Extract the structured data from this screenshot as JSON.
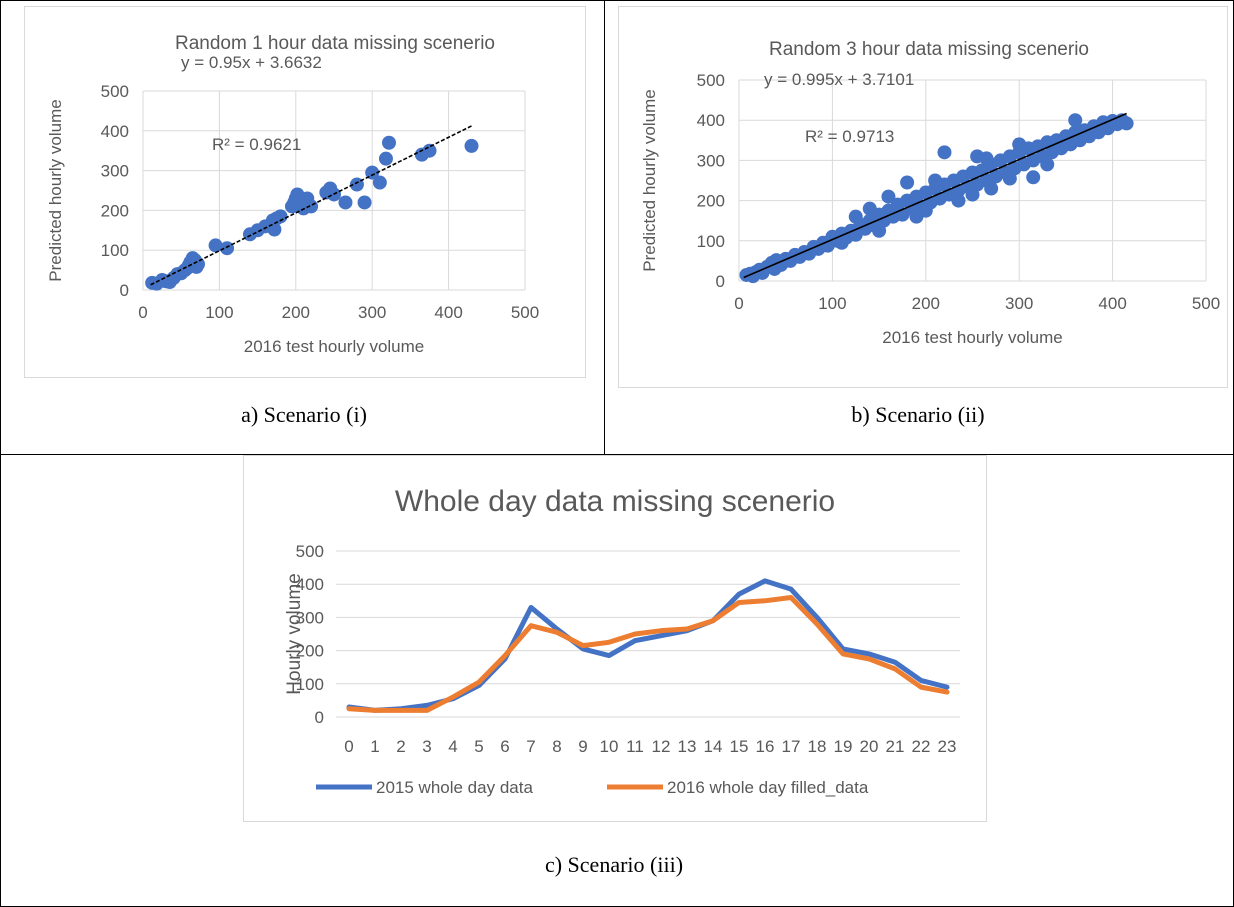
{
  "captions": {
    "a": "a)   Scenario (i)",
    "b": "b)   Scenario (ii)",
    "c": "c)   Scenario (iii)"
  },
  "colors": {
    "blue": "#4472C4",
    "orange": "#ED7D31",
    "grid": "#d9d9d9",
    "text": "#595959"
  },
  "chart_data": [
    {
      "id": "a",
      "type": "scatter",
      "title": "Random 1 hour data missing scenerio",
      "xlabel": "2016 test hourly volume",
      "ylabel": "Predicted hourly volume",
      "xlim": [
        0,
        500
      ],
      "ylim": [
        0,
        500
      ],
      "xticks": [
        "0",
        "100",
        "200",
        "300",
        "400",
        "500"
      ],
      "yticks": [
        "0",
        "100",
        "200",
        "300",
        "400",
        "500"
      ],
      "grid": true,
      "trendline": {
        "slope": 0.95,
        "intercept": 3.6632,
        "x_range": [
          10,
          430
        ]
      },
      "equation": "y = 0.95x + 3.6632",
      "r2": "R² = 0.9621",
      "points": [
        [
          12,
          18
        ],
        [
          18,
          16
        ],
        [
          25,
          25
        ],
        [
          30,
          22
        ],
        [
          35,
          20
        ],
        [
          40,
          30
        ],
        [
          45,
          40
        ],
        [
          50,
          42
        ],
        [
          55,
          50
        ],
        [
          58,
          55
        ],
        [
          60,
          62
        ],
        [
          62,
          70
        ],
        [
          65,
          80
        ],
        [
          68,
          75
        ],
        [
          70,
          58
        ],
        [
          72,
          65
        ],
        [
          95,
          112
        ],
        [
          110,
          105
        ],
        [
          140,
          140
        ],
        [
          150,
          150
        ],
        [
          160,
          160
        ],
        [
          170,
          175
        ],
        [
          172,
          152
        ],
        [
          175,
          180
        ],
        [
          180,
          185
        ],
        [
          195,
          210
        ],
        [
          198,
          220
        ],
        [
          200,
          230
        ],
        [
          202,
          240
        ],
        [
          205,
          225
        ],
        [
          208,
          215
        ],
        [
          210,
          205
        ],
        [
          215,
          230
        ],
        [
          220,
          210
        ],
        [
          240,
          245
        ],
        [
          245,
          255
        ],
        [
          250,
          240
        ],
        [
          265,
          220
        ],
        [
          280,
          265
        ],
        [
          290,
          220
        ],
        [
          300,
          295
        ],
        [
          310,
          270
        ],
        [
          318,
          330
        ],
        [
          322,
          370
        ],
        [
          365,
          340
        ],
        [
          375,
          350
        ],
        [
          430,
          362
        ]
      ]
    },
    {
      "id": "b",
      "type": "scatter",
      "title": "Random 3 hour data missing scenerio",
      "xlabel": "2016 test hourly volume",
      "ylabel": "Predicted hourly volume",
      "xlim": [
        0,
        500
      ],
      "ylim": [
        0,
        500
      ],
      "xticks": [
        "0",
        "100",
        "200",
        "300",
        "400",
        "500"
      ],
      "yticks": [
        "0",
        "100",
        "200",
        "300",
        "400",
        "500"
      ],
      "grid": true,
      "trendline": {
        "slope": 0.995,
        "intercept": 3.7101,
        "x_range": [
          5,
          415
        ]
      },
      "equation": "y = 0.995x + 3.7101",
      "r2": "R² = 0.9713",
      "points": [
        [
          8,
          15
        ],
        [
          12,
          18
        ],
        [
          15,
          12
        ],
        [
          18,
          22
        ],
        [
          22,
          28
        ],
        [
          25,
          20
        ],
        [
          30,
          35
        ],
        [
          35,
          45
        ],
        [
          38,
          30
        ],
        [
          40,
          52
        ],
        [
          45,
          40
        ],
        [
          50,
          55
        ],
        [
          55,
          50
        ],
        [
          60,
          65
        ],
        [
          65,
          60
        ],
        [
          70,
          72
        ],
        [
          75,
          68
        ],
        [
          80,
          85
        ],
        [
          85,
          80
        ],
        [
          90,
          95
        ],
        [
          95,
          88
        ],
        [
          100,
          110
        ],
        [
          105,
          100
        ],
        [
          110,
          118
        ],
        [
          115,
          108
        ],
        [
          120,
          125
        ],
        [
          125,
          115
        ],
        [
          130,
          140
        ],
        [
          135,
          130
        ],
        [
          140,
          150
        ],
        [
          145,
          138
        ],
        [
          150,
          165
        ],
        [
          155,
          150
        ],
        [
          160,
          175
        ],
        [
          165,
          160
        ],
        [
          170,
          190
        ],
        [
          175,
          165
        ],
        [
          180,
          200
        ],
        [
          185,
          180
        ],
        [
          190,
          210
        ],
        [
          195,
          185
        ],
        [
          200,
          220
        ],
        [
          205,
          195
        ],
        [
          210,
          230
        ],
        [
          215,
          205
        ],
        [
          220,
          240
        ],
        [
          225,
          215
        ],
        [
          230,
          250
        ],
        [
          235,
          225
        ],
        [
          240,
          260
        ],
        [
          245,
          235
        ],
        [
          250,
          270
        ],
        [
          255,
          240
        ],
        [
          260,
          275
        ],
        [
          265,
          250
        ],
        [
          270,
          290
        ],
        [
          275,
          260
        ],
        [
          280,
          300
        ],
        [
          285,
          270
        ],
        [
          290,
          310
        ],
        [
          295,
          280
        ],
        [
          300,
          320
        ],
        [
          305,
          290
        ],
        [
          310,
          330
        ],
        [
          315,
          300
        ],
        [
          320,
          335
        ],
        [
          325,
          310
        ],
        [
          330,
          345
        ],
        [
          335,
          320
        ],
        [
          340,
          350
        ],
        [
          345,
          330
        ],
        [
          350,
          360
        ],
        [
          355,
          340
        ],
        [
          360,
          370
        ],
        [
          365,
          350
        ],
        [
          370,
          375
        ],
        [
          375,
          360
        ],
        [
          380,
          385
        ],
        [
          385,
          370
        ],
        [
          390,
          395
        ],
        [
          395,
          380
        ],
        [
          400,
          398
        ],
        [
          405,
          390
        ],
        [
          410,
          400
        ],
        [
          415,
          392
        ],
        [
          160,
          210
        ],
        [
          180,
          245
        ],
        [
          220,
          320
        ],
        [
          255,
          310
        ],
        [
          360,
          400
        ],
        [
          110,
          95
        ],
        [
          150,
          125
        ],
        [
          200,
          175
        ],
        [
          250,
          215
        ],
        [
          290,
          255
        ],
        [
          330,
          290
        ],
        [
          270,
          230
        ],
        [
          235,
          200
        ],
        [
          315,
          258
        ],
        [
          190,
          160
        ],
        [
          140,
          180
        ],
        [
          125,
          160
        ],
        [
          210,
          250
        ],
        [
          265,
          305
        ],
        [
          300,
          340
        ]
      ]
    },
    {
      "id": "c",
      "type": "line",
      "title": "Whole day data missing scenerio",
      "xlabel": "",
      "ylabel": "Hourly volume",
      "categories": [
        "0",
        "1",
        "2",
        "3",
        "4",
        "5",
        "6",
        "7",
        "8",
        "9",
        "10",
        "11",
        "12",
        "13",
        "14",
        "15",
        "16",
        "17",
        "18",
        "19",
        "20",
        "21",
        "22",
        "23"
      ],
      "ylim": [
        0,
        500
      ],
      "yticks": [
        "0",
        "100",
        "200",
        "300",
        "400",
        "500"
      ],
      "grid": true,
      "legend": "bottom",
      "series": [
        {
          "name": "2015 whole day data",
          "color": "#4472C4",
          "values": [
            30,
            20,
            25,
            35,
            55,
            95,
            175,
            330,
            265,
            205,
            185,
            230,
            245,
            260,
            290,
            370,
            410,
            385,
            300,
            205,
            190,
            165,
            110,
            90
          ]
        },
        {
          "name": "2016 whole day filled_data",
          "color": "#ED7D31",
          "values": [
            25,
            20,
            20,
            20,
            60,
            105,
            185,
            275,
            255,
            215,
            225,
            250,
            260,
            265,
            290,
            345,
            350,
            360,
            280,
            190,
            175,
            145,
            90,
            75
          ]
        }
      ]
    }
  ]
}
